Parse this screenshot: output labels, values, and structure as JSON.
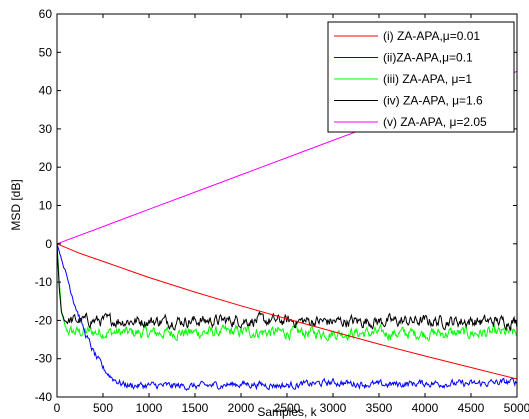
{
  "chart_data": {
    "type": "line",
    "title": "",
    "xlabel": "Samples, k",
    "ylabel": "MSD [dB]",
    "xlim": [
      0,
      5000
    ],
    "ylim": [
      -40,
      60
    ],
    "xticks": [
      0,
      500,
      1000,
      1500,
      2000,
      2500,
      3000,
      3500,
      4000,
      4500,
      5000
    ],
    "yticks": [
      -40,
      -30,
      -20,
      -10,
      0,
      10,
      20,
      30,
      40,
      50,
      60
    ],
    "grid": false,
    "legend_position": "top-right",
    "series": [
      {
        "name": "(i) ZA-APA,μ=0.01",
        "color": "#ff0000",
        "x": [
          0,
          250,
          500,
          1000,
          1500,
          2000,
          2500,
          3000,
          3500,
          4000,
          4500,
          5000
        ],
        "y": [
          0,
          -2.5,
          -4.6,
          -8.8,
          -12.6,
          -16.2,
          -19.6,
          -22.9,
          -26.2,
          -29.3,
          -32.3,
          -35.3
        ]
      },
      {
        "name": "(ii)ZA-APA,μ=0.1",
        "color": "#0000ff",
        "x": [
          0,
          50,
          100,
          200,
          300,
          400,
          500,
          600,
          700,
          800,
          1000,
          1500,
          2000,
          2500,
          3000,
          3500,
          4000,
          4500,
          5000
        ],
        "y": [
          0,
          -4,
          -8,
          -16,
          -23,
          -28.5,
          -32.5,
          -35,
          -36.5,
          -37,
          -37,
          -37.2,
          -36.6,
          -37,
          -36.2,
          -36.8,
          -36.4,
          -36.6,
          -36
        ],
        "noise": 0.6
      },
      {
        "name": "(iii) ZA-APA, μ=1",
        "color": "#00ff00",
        "x": [
          0,
          25,
          50,
          75,
          100,
          150,
          200,
          1000,
          2000,
          3000,
          4000,
          5000
        ],
        "y": [
          0,
          -10,
          -18,
          -21,
          -22.5,
          -23,
          -23,
          -23.3,
          -23,
          -23.3,
          -23.4,
          -23.3
        ],
        "noise": 1.0
      },
      {
        "name": "(iv) ZA-APA, μ=1.6",
        "color": "#000000",
        "x": [
          0,
          25,
          50,
          75,
          100,
          150,
          200,
          1000,
          2000,
          3000,
          4000,
          5000
        ],
        "y": [
          0,
          -12,
          -18,
          -19.5,
          -20,
          -20,
          -20,
          -20.2,
          -20,
          -20.3,
          -20.2,
          -20.3
        ],
        "noise": 1.0
      },
      {
        "name": "(v) ZA-APA, μ=2.05",
        "color": "#ff00ff",
        "x": [
          0,
          500,
          1000,
          1500,
          2000,
          2500,
          3000,
          3500,
          4000,
          4500,
          5000
        ],
        "y": [
          0,
          4.5,
          9,
          13.5,
          18,
          22.5,
          27,
          31.5,
          36,
          40.5,
          45
        ]
      }
    ]
  }
}
